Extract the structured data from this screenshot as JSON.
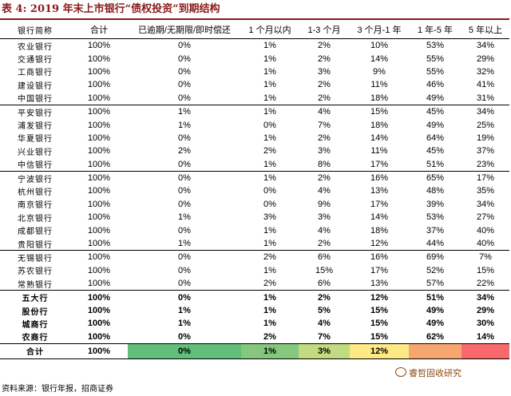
{
  "title": "表 4:  2019 年末上市银行“债权投资”到期结构",
  "columns": [
    "银行简称",
    "合计",
    "已逾期/无期限/即时偿还",
    "1 个月以内",
    "1-3 个月",
    "3 个月-1 年",
    "1 年-5 年",
    "5 年以上"
  ],
  "rows": [
    {
      "bank": "农业银行",
      "values": [
        "100%",
        "0%",
        "1%",
        "2%",
        "10%",
        "53%",
        "34%"
      ]
    },
    {
      "bank": "交通银行",
      "values": [
        "100%",
        "0%",
        "1%",
        "2%",
        "14%",
        "55%",
        "29%"
      ]
    },
    {
      "bank": "工商银行",
      "values": [
        "100%",
        "0%",
        "1%",
        "3%",
        "9%",
        "55%",
        "32%"
      ]
    },
    {
      "bank": "建设银行",
      "values": [
        "100%",
        "0%",
        "1%",
        "2%",
        "11%",
        "46%",
        "41%"
      ]
    },
    {
      "bank": "中国银行",
      "values": [
        "100%",
        "0%",
        "1%",
        "2%",
        "18%",
        "49%",
        "31%"
      ]
    },
    {
      "bank": "平安银行",
      "values": [
        "100%",
        "1%",
        "1%",
        "4%",
        "15%",
        "45%",
        "34%"
      ]
    },
    {
      "bank": "浦发银行",
      "values": [
        "100%",
        "1%",
        "0%",
        "7%",
        "18%",
        "49%",
        "25%"
      ]
    },
    {
      "bank": "华夏银行",
      "values": [
        "100%",
        "0%",
        "1%",
        "2%",
        "14%",
        "64%",
        "19%"
      ]
    },
    {
      "bank": "兴业银行",
      "values": [
        "100%",
        "2%",
        "2%",
        "3%",
        "11%",
        "45%",
        "37%"
      ]
    },
    {
      "bank": "中信银行",
      "values": [
        "100%",
        "0%",
        "1%",
        "8%",
        "17%",
        "51%",
        "23%"
      ]
    },
    {
      "bank": "宁波银行",
      "values": [
        "100%",
        "0%",
        "1%",
        "2%",
        "16%",
        "65%",
        "17%"
      ]
    },
    {
      "bank": "杭州银行",
      "values": [
        "100%",
        "0%",
        "0%",
        "4%",
        "13%",
        "48%",
        "35%"
      ]
    },
    {
      "bank": "南京银行",
      "values": [
        "100%",
        "0%",
        "0%",
        "9%",
        "17%",
        "39%",
        "34%"
      ]
    },
    {
      "bank": "北京银行",
      "values": [
        "100%",
        "1%",
        "3%",
        "3%",
        "14%",
        "53%",
        "27%"
      ]
    },
    {
      "bank": "成都银行",
      "values": [
        "100%",
        "0%",
        "1%",
        "4%",
        "18%",
        "37%",
        "40%"
      ]
    },
    {
      "bank": "贵阳银行",
      "values": [
        "100%",
        "1%",
        "1%",
        "2%",
        "12%",
        "44%",
        "40%"
      ]
    },
    {
      "bank": "无锡银行",
      "values": [
        "100%",
        "0%",
        "2%",
        "6%",
        "16%",
        "69%",
        "7%"
      ]
    },
    {
      "bank": "苏农银行",
      "values": [
        "100%",
        "0%",
        "1%",
        "15%",
        "17%",
        "52%",
        "15%"
      ]
    },
    {
      "bank": "常熟银行",
      "values": [
        "100%",
        "0%",
        "2%",
        "6%",
        "13%",
        "57%",
        "22%"
      ]
    },
    {
      "bank": "五大行",
      "values": [
        "100%",
        "0%",
        "1%",
        "2%",
        "12%",
        "51%",
        "34%"
      ]
    },
    {
      "bank": "股份行",
      "values": [
        "100%",
        "1%",
        "1%",
        "5%",
        "15%",
        "49%",
        "29%"
      ]
    },
    {
      "bank": "城商行",
      "values": [
        "100%",
        "1%",
        "1%",
        "4%",
        "15%",
        "49%",
        "30%"
      ]
    },
    {
      "bank": "农商行",
      "values": [
        "100%",
        "0%",
        "2%",
        "7%",
        "15%",
        "62%",
        "14%"
      ]
    }
  ],
  "total": {
    "bank": "合计",
    "values": [
      "100%",
      "0%",
      "1%",
      "3%",
      "12%",
      "",
      ""
    ]
  },
  "total_colors": [
    "#ffffff",
    "#ffffff",
    "#63be7b",
    "#85c87d",
    "#c2da80",
    "#fdea84",
    "#f8a66f",
    "#f8696b"
  ],
  "source": "资料来源：银行年报，招商证券",
  "watermark": "睿哲固收研究"
}
